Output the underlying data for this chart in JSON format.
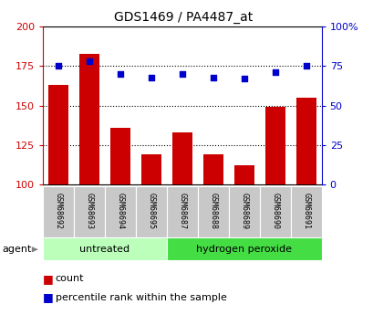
{
  "title": "GDS1469 / PA4487_at",
  "categories": [
    "GSM68692",
    "GSM68693",
    "GSM68694",
    "GSM68695",
    "GSM68687",
    "GSM68688",
    "GSM68689",
    "GSM68690",
    "GSM68691"
  ],
  "bar_values": [
    163,
    183,
    136,
    119,
    133,
    119,
    112,
    149,
    155
  ],
  "percentile_values": [
    75,
    78,
    70,
    68,
    70,
    68,
    67,
    71,
    75
  ],
  "bar_color": "#cc0000",
  "dot_color": "#0000cc",
  "ylim_left": [
    100,
    200
  ],
  "ylim_right": [
    0,
    100
  ],
  "yticks_left": [
    100,
    125,
    150,
    175,
    200
  ],
  "yticks_right": [
    0,
    25,
    50,
    75,
    100
  ],
  "ytick_labels_right": [
    "0",
    "25",
    "50",
    "75",
    "100%"
  ],
  "groups": [
    {
      "label": "untreated",
      "start": 0,
      "end": 4,
      "color": "#bbffbb"
    },
    {
      "label": "hydrogen peroxide",
      "start": 4,
      "end": 9,
      "color": "#44dd44"
    }
  ],
  "agent_label": "agent",
  "legend_count_label": "count",
  "legend_percentile_label": "percentile rank within the sample",
  "grid_color": "black",
  "grid_style": "dotted",
  "background_color": "#ffffff",
  "tick_label_bg": "#c8c8c8",
  "bar_width": 0.65
}
